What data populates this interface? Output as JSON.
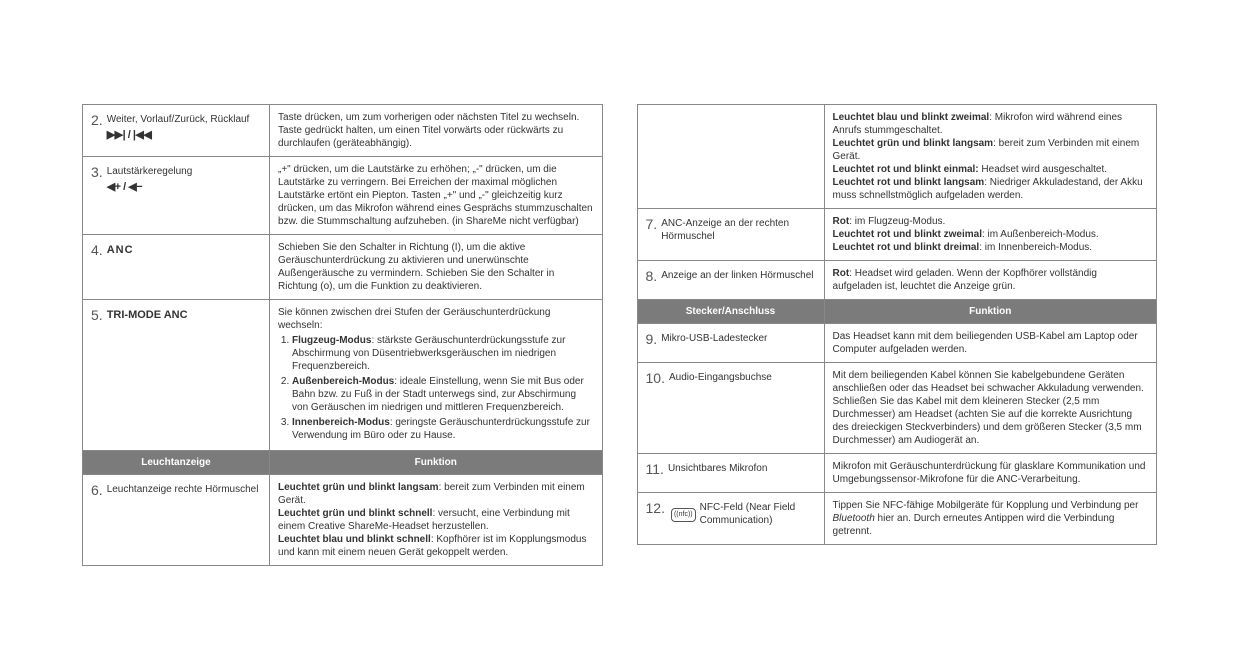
{
  "left": {
    "rows": [
      {
        "num": "2.",
        "label": "Weiter, Vorlauf/Zurück, Rücklauf",
        "icon": "▶▶| / |◀◀",
        "desc": "Taste drücken, um zum vorherigen oder nächsten Titel zu wechseln. Taste gedrückt halten, um einen Titel vorwärts oder rückwärts zu durchlaufen (geräteabhängig)."
      },
      {
        "num": "3.",
        "label": "Lautstärkeregelung",
        "icon": "◀+ / ◀−",
        "desc": "„+\" drücken, um die Lautstärke zu erhöhen; „-\" drücken, um die Lautstärke zu verringern. Bei Erreichen der maximal möglichen Lautstärke ertönt ein Piepton. Tasten „+\" und „-\" gleichzeitig kurz drücken, um das Mikrofon während eines Gesprächs stummzuschalten bzw. die Stummschaltung aufzuheben. (in ShareMe nicht verfügbar)"
      },
      {
        "num": "4.",
        "label_class": "anc",
        "label": "ANC",
        "desc": "Schieben Sie den Schalter in Richtung (I), um die aktive Geräuschunterdrückung zu aktivieren und unerwünschte Außengeräusche zu vermindern. Schieben Sie den Schalter in Richtung (o), um die Funktion zu deaktivieren."
      },
      {
        "num": "5.",
        "label_class": "tri",
        "label": "TRI-MODE ANC",
        "desc_intro": "Sie können zwischen drei Stufen der Geräuschunterdrückung wechseln:",
        "modes": [
          {
            "b": "Flugzeug-Modus",
            "t": ": stärkste Geräuschunterdrückungsstufe zur Abschirmung von Düsentriebwerksgeräuschen im niedrigen Frequenzbereich."
          },
          {
            "b": "Außenbereich-Modus",
            "t": ": ideale Einstellung, wenn Sie mit Bus oder Bahn bzw. zu Fuß in der Stadt unterwegs sind, zur Abschirmung von Geräuschen im niedrigen und mittleren Frequenzbereich."
          },
          {
            "b": "Innenbereich-Modus",
            "t": ": geringste Geräuschunterdrückungsstufe zur Verwendung im Büro oder zu Hause."
          }
        ]
      }
    ],
    "header": {
      "l": "Leuchtanzeige",
      "r": "Funktion"
    },
    "row6": {
      "num": "6.",
      "label": "Leuchtanzeige rechte Hörmuschel",
      "statuses": [
        {
          "b": "Leuchtet grün und blinkt langsam",
          "t": ": bereit zum Verbinden mit einem Gerät."
        },
        {
          "b": "Leuchtet grün und blinkt schnell",
          "t": ": versucht, eine Verbindung mit einem Creative ShareMe-Headset herzustellen."
        },
        {
          "b": "Leuchtet blau und blinkt schnell",
          "t": ": Kopfhörer ist im Kopplungsmodus und kann mit einem neuen Gerät gekoppelt werden."
        }
      ]
    }
  },
  "right": {
    "row6b": {
      "statuses": [
        {
          "b": "Leuchtet blau und blinkt zweimal",
          "t": ": Mikrofon wird während eines Anrufs stummgeschaltet."
        },
        {
          "b": "Leuchtet grün und blinkt langsam",
          "t": ": bereit zum Verbinden mit einem Gerät."
        },
        {
          "b": "Leuchtet rot und blinkt einmal:",
          "t": " Headset wird ausgeschaltet."
        },
        {
          "b": "Leuchtet rot und blinkt langsam",
          "t": ": Niedriger Akkuladestand, der Akku muss schnellstmöglich aufgeladen werden."
        }
      ]
    },
    "row7": {
      "num": "7.",
      "label": "ANC-Anzeige an der rechten Hörmuschel",
      "statuses": [
        {
          "b": "Rot",
          "t": ": im Flugzeug-Modus."
        },
        {
          "b": "Leuchtet rot und blinkt zweimal",
          "t": ": im Außenbereich-Modus."
        },
        {
          "b": "Leuchtet rot und blinkt dreimal",
          "t": ": im Innenbereich-Modus."
        }
      ]
    },
    "row8": {
      "num": "8.",
      "label": "Anzeige an der linken Hörmuschel",
      "statuses": [
        {
          "b": "Rot",
          "t": ": Headset wird geladen. Wenn der Kopfhörer vollständig aufgeladen ist, leuchtet die Anzeige grün."
        }
      ]
    },
    "header": {
      "l": "Stecker/Anschluss",
      "r": "Funktion"
    },
    "row9": {
      "num": "9.",
      "label": "Mikro-USB-Ladestecker",
      "desc": "Das Headset kann mit dem beiliegenden USB-Kabel am Laptop oder Computer aufgeladen werden."
    },
    "row10": {
      "num": "10.",
      "label": "Audio-Eingangsbuchse",
      "desc": "Mit dem beiliegenden Kabel können Sie kabelgebundene Geräten anschließen oder das Headset bei schwacher Akkuladung verwenden. Schließen Sie das Kabel mit dem kleineren Stecker (2,5 mm Durchmesser) am Headset (achten Sie auf die korrekte Ausrichtung des dreieckigen Steckverbinders) und dem größeren Stecker (3,5 mm Durchmesser) am Audiogerät an."
    },
    "row11": {
      "num": "11.",
      "label": "Unsichtbares Mikrofon",
      "desc": "Mikrofon mit Geräuschunterdrückung für glasklare Kommunikation und Umgebungssensor-Mikrofone für die ANC-Verarbeitung."
    },
    "row12": {
      "num": "12.",
      "label": "NFC-Feld (Near Field Communication)",
      "desc_pre": "Tippen Sie NFC-fähige Mobilgeräte für Kopplung und Verbindung per ",
      "desc_em": "Bluetooth",
      "desc_post": " hier an. Durch erneutes Antippen wird die Verbindung getrennt."
    }
  }
}
